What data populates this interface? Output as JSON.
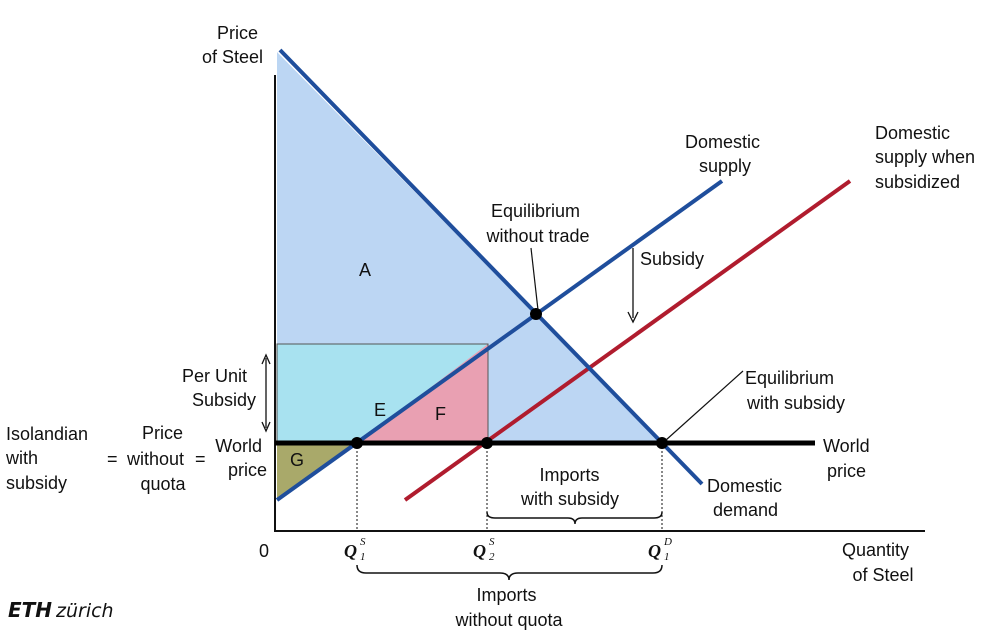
{
  "colors": {
    "demand_line": "#1f4e9c",
    "supply_line": "#1f4e9c",
    "subsidized_supply_line": "#b01c2e",
    "world_price_line": "#000000",
    "area_A": "#bcd6f3",
    "area_E": "#a8e2f0",
    "area_F": "#e9a0b2",
    "area_G": "#a9a96a"
  },
  "axis": {
    "y_label_line1": "Price",
    "y_label_line2": "of Steel",
    "x_label_line1": "Quantity",
    "x_label_line2": "of Steel",
    "origin": "0"
  },
  "curves": {
    "domestic_supply_line1": "Domestic",
    "domestic_supply_line2": "supply",
    "subsidized_supply_line1": "Domestic",
    "subsidized_supply_line2": "supply when",
    "subsidized_supply_line3": "subsidized",
    "domestic_demand_line1": "Domestic",
    "domestic_demand_line2": "demand",
    "world_price_right_line1": "World",
    "world_price_right_line2": "price",
    "world_price_left_line1": "World",
    "world_price_left_line2": "price"
  },
  "annotations": {
    "eq_no_trade_line1": "Equilibrium",
    "eq_no_trade_line2": "without trade",
    "subsidy": "Subsidy",
    "eq_subsidy_line1": "Equilibrium",
    "eq_subsidy_line2": "with subsidy",
    "per_unit_line1": "Per Unit",
    "per_unit_line2": "Subsidy",
    "isolandian_line1": "Isolandian",
    "isolandian_line2": "with",
    "isolandian_line3": "subsidy",
    "equals1": "=",
    "price_no_quota_line1": "Price",
    "price_no_quota_line2": "without",
    "price_no_quota_line3": "quota",
    "equals2": "=",
    "imports_subsidy_line1": "Imports",
    "imports_subsidy_line2": "with subsidy",
    "imports_no_quota_line1": "Imports",
    "imports_no_quota_line2": "without quota"
  },
  "areas": {
    "A": "A",
    "E": "E",
    "F": "F",
    "G": "G"
  },
  "quantities": {
    "q1s": "Q",
    "q1s_sup": "S",
    "q1s_sub": "1",
    "q2s": "Q",
    "q2s_sup": "S",
    "q2s_sub": "2",
    "q1d": "Q",
    "q1d_sup": "D",
    "q1d_sub": "1"
  },
  "logo": {
    "bold": "ETH",
    "rest": "zürich"
  }
}
